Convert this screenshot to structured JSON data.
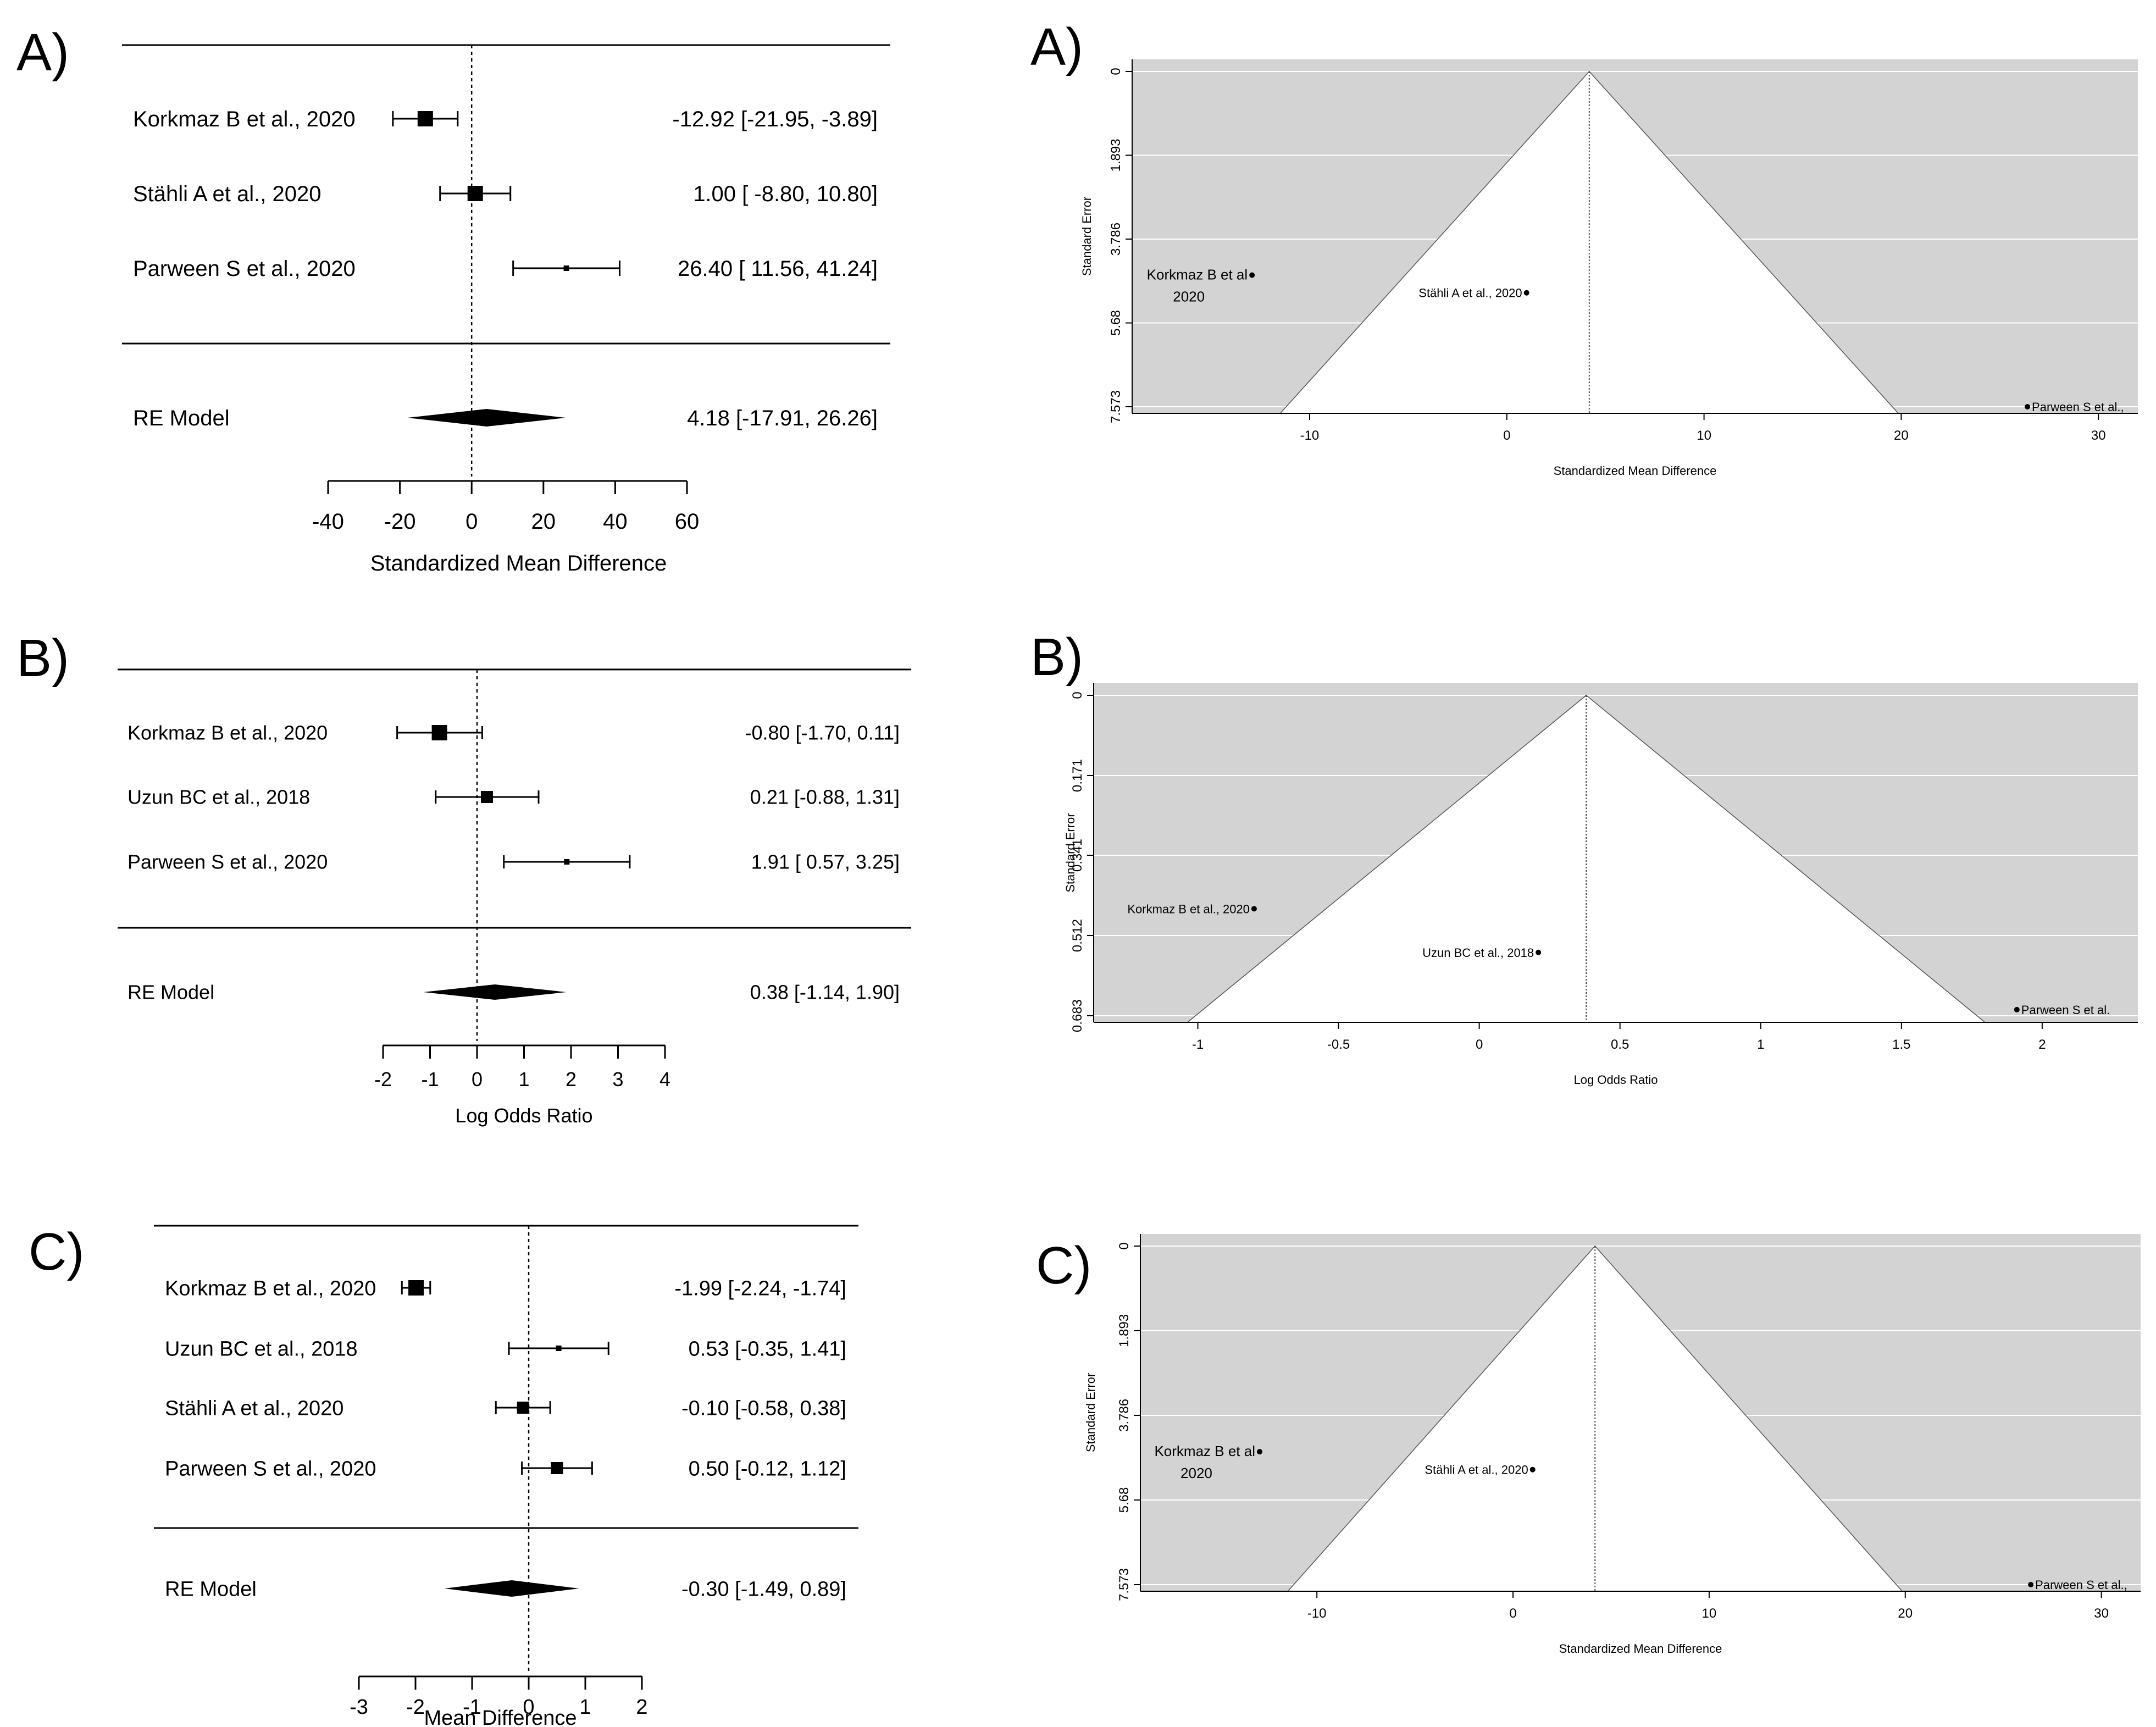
{
  "chart_data": [
    {
      "type": "forest",
      "panel": "A)",
      "xlabel": "Standardized Mean Difference",
      "xticks": [
        -40,
        -20,
        0,
        20,
        40,
        60
      ],
      "xlim": [
        -40,
        60
      ],
      "studies": [
        {
          "label": "Korkmaz B  et al., 2020",
          "est": -12.92,
          "lo": -21.95,
          "hi": -3.89,
          "text": "-12.92 [-21.95, -3.89]",
          "marker": "large"
        },
        {
          "label": "Stähli A et al., 2020",
          "est": 1.0,
          "lo": -8.8,
          "hi": 10.8,
          "text": "1.00 [ -8.80, 10.80]",
          "marker": "large"
        },
        {
          "label": "Parween S et al., 2020",
          "est": 26.4,
          "lo": 11.56,
          "hi": 41.24,
          "text": "26.40 [ 11.56, 41.24]",
          "marker": "small"
        }
      ],
      "summary": {
        "label": "RE Model",
        "est": 4.18,
        "lo": -17.91,
        "hi": 26.26,
        "text": "4.18 [-17.91, 26.26]"
      }
    },
    {
      "type": "funnel",
      "panel": "A)",
      "xlabel": "Standardized Mean Difference",
      "ylabel": "Standard Error",
      "xticks": [
        -10,
        0,
        10,
        20,
        30
      ],
      "xlim": [
        -19,
        32
      ],
      "yticks": [
        "0",
        "1.893",
        "3.786",
        "5.68",
        "7.573"
      ],
      "ylim": [
        0,
        7.573
      ],
      "estimate": 4.18,
      "points": [
        {
          "label": "Korkmaz B  et al\n2020",
          "x": -12.92,
          "y": 4.6
        },
        {
          "label": "Stähli A et al., 2020",
          "x": 1.0,
          "y": 5.0
        },
        {
          "label": "Parween S et al.,",
          "x": 26.4,
          "y": 7.573
        }
      ]
    },
    {
      "type": "forest",
      "panel": "B)",
      "xlabel": "Log Odds Ratio",
      "xticks": [
        -2,
        -1,
        0,
        1,
        2,
        3,
        4
      ],
      "xlim": [
        -2,
        4
      ],
      "studies": [
        {
          "label": "Korkmaz B  et al., 2020",
          "est": -0.8,
          "lo": -1.7,
          "hi": 0.11,
          "text": "-0.80 [-1.70, 0.11]",
          "marker": "large"
        },
        {
          "label": "Uzun BC et al., 2018",
          "est": 0.21,
          "lo": -0.88,
          "hi": 1.31,
          "text": "0.21 [-0.88, 1.31]",
          "marker": "medium"
        },
        {
          "label": "Parween S et al., 2020",
          "est": 1.91,
          "lo": 0.57,
          "hi": 3.25,
          "text": "1.91 [ 0.57, 3.25]",
          "marker": "small"
        }
      ],
      "summary": {
        "label": "RE Model",
        "est": 0.38,
        "lo": -1.14,
        "hi": 1.9,
        "text": "0.38 [-1.14, 1.90]"
      }
    },
    {
      "type": "funnel",
      "panel": "B)",
      "xlabel": "Log Odds Ratio",
      "ylabel": "Standard Error",
      "xticks": [
        "-1",
        "-0.5",
        "0",
        "0.5",
        "1",
        "1.5",
        "2"
      ],
      "xlim": [
        -1.37,
        2.34
      ],
      "yticks": [
        "0",
        "0.171",
        "0.341",
        "0.512",
        "0.683"
      ],
      "ylim": [
        0,
        0.683
      ],
      "estimate": 0.38,
      "points": [
        {
          "label": "Korkmaz B  et al., 2020",
          "x": -0.8,
          "y": 0.455
        },
        {
          "label": "Uzun BC et al., 2018",
          "x": 0.21,
          "y": 0.548
        },
        {
          "label": "Parween S et al.",
          "x": 1.91,
          "y": 0.67
        }
      ]
    },
    {
      "type": "forest",
      "panel": "C)",
      "xlabel": "Mean Difference",
      "xticks": [
        -3,
        -2,
        -1,
        0,
        1,
        2
      ],
      "xlim": [
        -3,
        2
      ],
      "studies": [
        {
          "label": "Korkmaz B  et al., 2020",
          "est": -1.99,
          "lo": -2.24,
          "hi": -1.74,
          "text": "-1.99 [-2.24, -1.74]",
          "marker": "large"
        },
        {
          "label": "Uzun BC et al., 2018",
          "est": 0.53,
          "lo": -0.35,
          "hi": 1.41,
          "text": "0.53 [-0.35,  1.41]",
          "marker": "small"
        },
        {
          "label": "Stähli A et al., 2020",
          "est": -0.1,
          "lo": -0.58,
          "hi": 0.38,
          "text": "-0.10 [-0.58,  0.38]",
          "marker": "medium"
        },
        {
          "label": "Parween S et al., 2020",
          "est": 0.5,
          "lo": -0.12,
          "hi": 1.12,
          "text": "0.50 [-0.12,  1.12]",
          "marker": "medium"
        }
      ],
      "summary": {
        "label": "RE Model",
        "est": -0.3,
        "lo": -1.49,
        "hi": 0.89,
        "text": "-0.30 [-1.49,  0.89]"
      }
    },
    {
      "type": "funnel",
      "panel": "C)",
      "xlabel": "Standardized Mean Difference",
      "ylabel": "Standard Error",
      "xticks": [
        -10,
        0,
        10,
        20,
        30
      ],
      "xlim": [
        -19,
        32
      ],
      "yticks": [
        "0",
        "1.893",
        "3.786",
        "5.68",
        "7.573"
      ],
      "ylim": [
        0,
        7.573
      ],
      "estimate": 4.18,
      "points": [
        {
          "label": "Korkmaz B  et al\n2020",
          "x": -12.92,
          "y": 4.6
        },
        {
          "label": "Stähli A et al., 2020",
          "x": 1.0,
          "y": 5.0
        },
        {
          "label": "Parween S et al.,",
          "x": 26.4,
          "y": 7.573
        }
      ]
    }
  ]
}
